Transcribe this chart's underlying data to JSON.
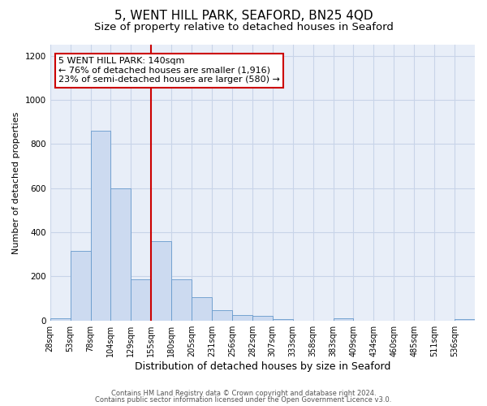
{
  "title": "5, WENT HILL PARK, SEAFORD, BN25 4QD",
  "subtitle": "Size of property relative to detached houses in Seaford",
  "xlabel": "Distribution of detached houses by size in Seaford",
  "ylabel": "Number of detached properties",
  "bar_values": [
    10,
    315,
    860,
    600,
    185,
    360,
    185,
    105,
    45,
    25,
    20,
    5,
    0,
    0,
    10,
    0,
    0,
    0,
    0,
    0,
    5
  ],
  "bar_labels": [
    "28sqm",
    "53sqm",
    "78sqm",
    "104sqm",
    "129sqm",
    "155sqm",
    "180sqm",
    "205sqm",
    "231sqm",
    "256sqm",
    "282sqm",
    "307sqm",
    "333sqm",
    "358sqm",
    "383sqm",
    "409sqm",
    "434sqm",
    "460sqm",
    "485sqm",
    "511sqm",
    "536sqm"
  ],
  "bar_color": "#ccdaf0",
  "bar_edge_color": "#6699cc",
  "ylim": [
    0,
    1250
  ],
  "yticks": [
    0,
    200,
    400,
    600,
    800,
    1000,
    1200
  ],
  "grid_color": "#c8d4e8",
  "plot_bg_color": "#e8eef8",
  "fig_bg_color": "#ffffff",
  "vline_color": "#cc0000",
  "annotation_text": "5 WENT HILL PARK: 140sqm\n← 76% of detached houses are smaller (1,916)\n23% of semi-detached houses are larger (580) →",
  "annotation_box_facecolor": "#ffffff",
  "annotation_box_edgecolor": "#cc0000",
  "footer_line1": "Contains HM Land Registry data © Crown copyright and database right 2024.",
  "footer_line2": "Contains public sector information licensed under the Open Government Licence v3.0.",
  "title_fontsize": 11,
  "subtitle_fontsize": 9.5,
  "tick_label_fontsize": 7,
  "xlabel_fontsize": 9,
  "ylabel_fontsize": 8,
  "annotation_fontsize": 8,
  "footer_fontsize": 6
}
